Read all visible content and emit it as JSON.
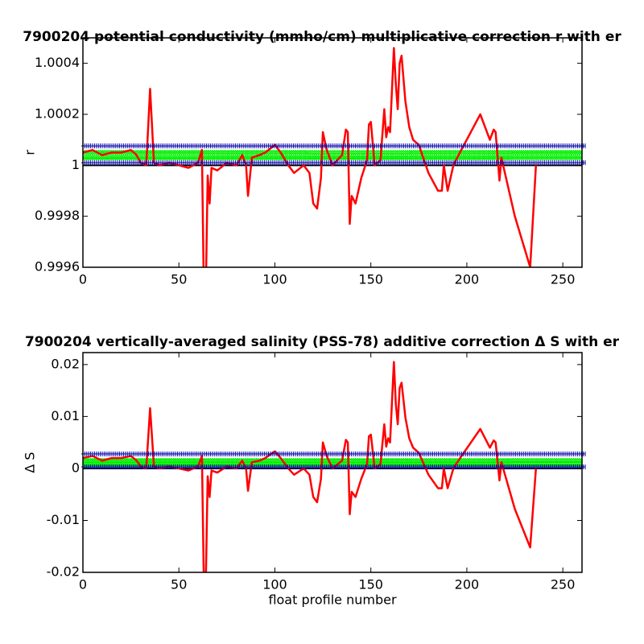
{
  "chart_data": [
    {
      "type": "line",
      "title": "7900204 potential conductivity (mmho/cm) multiplicative correction r with er",
      "ylabel": "r",
      "xlim": [
        0,
        260
      ],
      "xticks": [
        0,
        50,
        100,
        150,
        200,
        250
      ],
      "ylim": [
        0.9996,
        1.0005
      ],
      "yticks": [
        0.9996,
        0.9998,
        1,
        1.0002,
        1.0004
      ],
      "grid": false,
      "x": [
        0,
        5,
        10,
        15,
        20,
        25,
        28,
        30,
        33,
        35,
        37,
        40,
        45,
        50,
        55,
        60,
        62,
        63,
        64,
        65,
        66,
        67,
        70,
        75,
        80,
        83,
        85,
        86,
        88,
        92,
        95,
        100,
        103,
        107,
        110,
        115,
        118,
        120,
        122,
        124,
        125,
        127,
        130,
        135,
        137,
        138,
        139,
        140,
        142,
        145,
        148,
        149,
        150,
        152,
        155,
        157,
        158,
        159,
        160,
        162,
        163,
        164,
        165,
        166,
        168,
        170,
        172,
        175,
        180,
        185,
        187,
        188,
        190,
        193,
        195,
        207,
        212,
        214,
        215,
        217,
        218,
        225,
        233,
        236
      ],
      "series": [
        {
          "color": "#ff0000",
          "values": [
            1.00005,
            1.00006,
            1.00004,
            1.00005,
            1.00005,
            1.00006,
            1.00004,
            1.00001,
            1.0,
            1.0003,
            1.00001,
            1.0,
            1.00001,
            1.0,
            0.99999,
            1.00001,
            1.00006,
            0.9995,
            0.9995,
            0.99996,
            0.99985,
            0.99999,
            0.99998,
            1.00001,
            1.0,
            1.00004,
            1.0,
            0.99988,
            1.00003,
            1.00004,
            1.00005,
            1.00008,
            1.00005,
            1.0,
            0.99997,
            1.0,
            0.99997,
            0.99985,
            0.99983,
            0.99995,
            1.00013,
            1.00006,
            1.0,
            1.00004,
            1.00014,
            1.00013,
            0.99977,
            0.99988,
            0.99985,
            0.99995,
            1.00002,
            1.00016,
            1.00017,
            1.0,
            1.00002,
            1.00022,
            1.00011,
            1.00015,
            1.00013,
            1.00046,
            1.00032,
            1.00022,
            1.0004,
            1.00043,
            1.00025,
            1.00015,
            1.0001,
            1.00008,
            0.99997,
            0.9999,
            0.9999,
            1.0,
            0.9999,
            1.0,
            1.00003,
            1.0002,
            1.0001,
            1.00014,
            1.00013,
            0.99994,
            1.00003,
            0.9998,
            0.9996,
            1.0
          ]
        }
      ],
      "reference_lines": [
        {
          "value": 1.000076,
          "color": "#0000aa",
          "style": "ticked"
        },
        {
          "value": 1.00001,
          "color": "#0000aa",
          "style": "ticked"
        },
        {
          "value": 1.00005,
          "color": "#00ee00",
          "style": "markers"
        },
        {
          "value": 1.00003,
          "color": "#00ee00",
          "style": "markers"
        },
        {
          "value": 1,
          "color": "#000000",
          "style": "line"
        }
      ]
    },
    {
      "type": "line",
      "title": "7900204 vertically-averaged salinity (PSS-78) additive correction Δ S with er",
      "ylabel": "Δ S",
      "xlabel": "float profile number",
      "xlim": [
        0,
        260
      ],
      "xticks": [
        0,
        50,
        100,
        150,
        200,
        250
      ],
      "ylim": [
        -0.02,
        0.0223
      ],
      "yticks": [
        -0.02,
        -0.01,
        0,
        0.01,
        0.02
      ],
      "grid": false,
      "x": [
        0,
        5,
        10,
        15,
        20,
        25,
        28,
        30,
        33,
        35,
        37,
        40,
        45,
        50,
        55,
        60,
        62,
        63,
        64,
        65,
        66,
        67,
        70,
        75,
        80,
        83,
        85,
        86,
        88,
        92,
        95,
        100,
        103,
        107,
        110,
        115,
        118,
        120,
        122,
        124,
        125,
        127,
        130,
        135,
        137,
        138,
        139,
        140,
        142,
        145,
        148,
        149,
        150,
        152,
        155,
        157,
        158,
        159,
        160,
        162,
        163,
        164,
        165,
        166,
        168,
        170,
        172,
        175,
        180,
        185,
        187,
        188,
        190,
        193,
        195,
        207,
        212,
        214,
        215,
        217,
        218,
        225,
        233,
        236
      ],
      "series": [
        {
          "color": "#ff0000",
          "values": [
            0.002,
            0.0024,
            0.0015,
            0.002,
            0.002,
            0.0024,
            0.0015,
            0.0004,
            0,
            0.0116,
            0.0004,
            0,
            0.0004,
            0,
            -0.0004,
            0.0004,
            0.0024,
            -0.022,
            -0.022,
            -0.0015,
            -0.0055,
            -0.0004,
            -0.0008,
            0.0004,
            0,
            0.0015,
            0,
            -0.0043,
            0.0012,
            0.0015,
            0.002,
            0.0033,
            0.002,
            0,
            -0.0012,
            0,
            -0.0012,
            -0.0055,
            -0.0065,
            -0.002,
            0.005,
            0.0024,
            0,
            0.0015,
            0.0055,
            0.005,
            -0.0088,
            -0.0045,
            -0.0055,
            -0.002,
            0.0008,
            0.0062,
            0.0065,
            0,
            0.0008,
            0.0085,
            0.0042,
            0.0058,
            0.005,
            0.0205,
            0.0125,
            0.0085,
            0.0155,
            0.0165,
            0.0098,
            0.0058,
            0.004,
            0.003,
            -0.0012,
            -0.0038,
            -0.0038,
            0,
            -0.0038,
            0,
            0.0012,
            0.0076,
            0.004,
            0.0054,
            0.005,
            -0.0023,
            0.0012,
            -0.0078,
            -0.0152,
            0
          ]
        }
      ],
      "reference_lines": [
        {
          "value": 0.0028,
          "color": "#0000aa",
          "style": "ticked"
        },
        {
          "value": 0.0003,
          "color": "#0000aa",
          "style": "ticked"
        },
        {
          "value": 0.0015,
          "color": "#00ee00",
          "style": "markers"
        },
        {
          "value": 0.0008,
          "color": "#00ee00",
          "style": "markers"
        },
        {
          "value": 0,
          "color": "#000000",
          "style": "line"
        }
      ]
    }
  ]
}
